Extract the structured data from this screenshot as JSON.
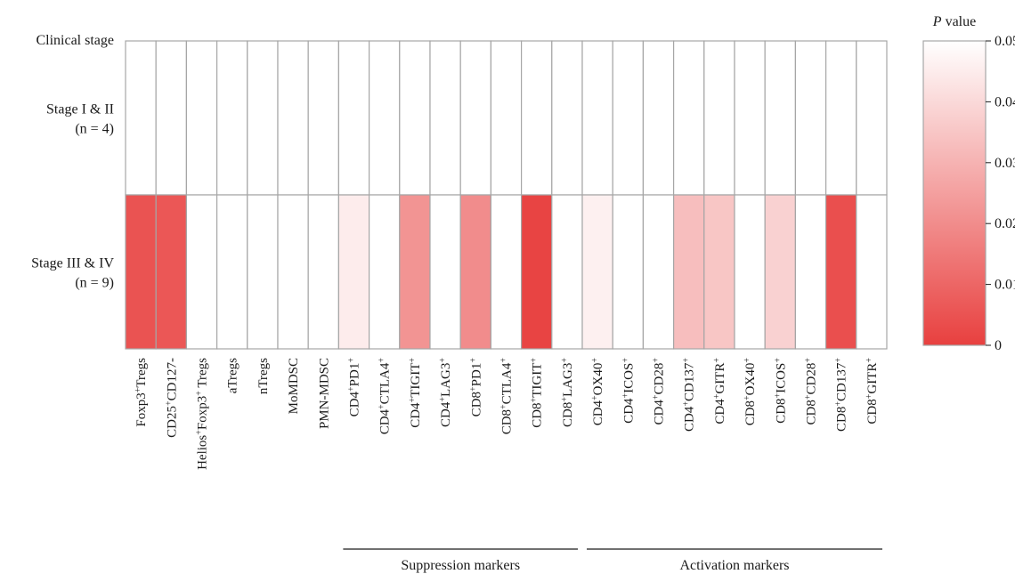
{
  "chart_data": {
    "type": "heatmap",
    "row_header": "Clinical stage",
    "rows": [
      {
        "label": "Stage I & II",
        "sub": "(n = 4)"
      },
      {
        "label": "Stage III & IV",
        "sub": "(n = 9)"
      }
    ],
    "columns": [
      {
        "label": "Foxp3",
        "sup": "+",
        "rest": "Tregs"
      },
      {
        "label": "CD25",
        "sup": "+",
        "rest": "CD127-"
      },
      {
        "label": "Helios",
        "sup": "+",
        "rest": "Foxp3",
        "sup2": "+",
        "rest2": " Tregs"
      },
      {
        "label": "aTregs"
      },
      {
        "label": "nTregs"
      },
      {
        "label": "MoMDSC"
      },
      {
        "label": "PMN-MDSC"
      },
      {
        "label": "CD4",
        "sup": "+",
        "rest": "PD1",
        "sup2": "+"
      },
      {
        "label": "CD4",
        "sup": "+",
        "rest": "CTLA4",
        "sup2": "+"
      },
      {
        "label": "CD4",
        "sup": "+",
        "rest": "TIGIT",
        "sup2": "+"
      },
      {
        "label": "CD4",
        "sup": "+",
        "rest": "LAG3",
        "sup2": "+"
      },
      {
        "label": "CD8",
        "sup": "+",
        "rest": "PD1",
        "sup2": "+"
      },
      {
        "label": "CD8",
        "sup": "+",
        "rest": "CTLA4",
        "sup2": "+"
      },
      {
        "label": "CD8",
        "sup": "+",
        "rest": "TIGIT",
        "sup2": "+"
      },
      {
        "label": "CD8",
        "sup": "+",
        "rest": "LAG3",
        "sup2": "+"
      },
      {
        "label": "CD4",
        "sup": "+",
        "rest": "OX40",
        "sup2": "+"
      },
      {
        "label": "CD4",
        "sup": "+",
        "rest": "ICOS",
        "sup2": "+"
      },
      {
        "label": "CD4",
        "sup": "+",
        "rest": "CD28",
        "sup2": "+"
      },
      {
        "label": "CD4",
        "sup": "+",
        "rest": "CD137",
        "sup2": "+"
      },
      {
        "label": "CD4",
        "sup": "+",
        "rest": "GITR",
        "sup2": "+"
      },
      {
        "label": "CD8",
        "sup": "+",
        "rest": "OX40",
        "sup2": "+"
      },
      {
        "label": "CD8",
        "sup": "+",
        "rest": "ICOS",
        "sup2": "+"
      },
      {
        "label": "CD8",
        "sup": "+",
        "rest": "CD28",
        "sup2": "+"
      },
      {
        "label": "CD8",
        "sup": "+",
        "rest": "CD137",
        "sup2": "+"
      },
      {
        "label": "CD8",
        "sup": "+",
        "rest": "GITR",
        "sup2": "+"
      }
    ],
    "values": [
      [
        0.05,
        0.05,
        0.05,
        0.05,
        0.05,
        0.05,
        0.05,
        0.05,
        0.05,
        0.05,
        0.05,
        0.05,
        0.05,
        0.05,
        0.05,
        0.05,
        0.05,
        0.05,
        0.05,
        0.05,
        0.05,
        0.05,
        0.05,
        0.05,
        0.05
      ],
      [
        0.005,
        0.006,
        0.05,
        0.05,
        0.05,
        0.05,
        0.05,
        0.045,
        0.05,
        0.022,
        0.05,
        0.02,
        0.05,
        0.001,
        0.05,
        0.046,
        0.05,
        0.05,
        0.033,
        0.035,
        0.05,
        0.038,
        0.05,
        0.004,
        0.05
      ]
    ],
    "groups": [
      {
        "label": "Suppression markers",
        "from": 7,
        "to": 14
      },
      {
        "label": "Activation markers",
        "from": 15,
        "to": 24
      }
    ],
    "colorbar": {
      "title_italic": "P",
      "title_rest": " value",
      "min": 0,
      "max": 0.05,
      "ticks": [
        "0",
        "0.01",
        "0.02",
        "0.03",
        "0.04",
        "0.05"
      ],
      "color_low": "#e8403f",
      "color_high": "#ffffff"
    }
  }
}
